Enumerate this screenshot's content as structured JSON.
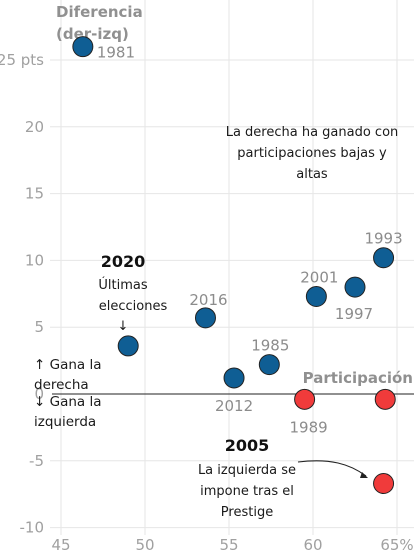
{
  "chart_data": {
    "type": "scatter",
    "xlabel": "Participación",
    "ylabel": "Diferencia (der-izq)",
    "ylabel_lines": [
      "Diferencia",
      "(der-izq)"
    ],
    "xlim": [
      44.5,
      66
    ],
    "ylim": [
      -10.3,
      28
    ],
    "x_ticks": [
      45,
      50,
      55,
      60,
      65
    ],
    "x_tick_labels": [
      "45",
      "50",
      "55",
      "60",
      "65%"
    ],
    "y_ticks": [
      25,
      20,
      15,
      10,
      5,
      0,
      -5,
      -10
    ],
    "y_tick_labels": [
      "25 pts",
      "20",
      "15",
      "10",
      "5",
      "0",
      "-5",
      "-10"
    ],
    "grid": true,
    "colors": {
      "derecha": "#0f5e94",
      "izquierda": "#f03b3b"
    },
    "points": [
      {
        "year": "1981",
        "x": 46.3,
        "y": 26.0,
        "winner": "derecha"
      },
      {
        "year": "2020",
        "x": 49.0,
        "y": 3.6,
        "winner": "derecha"
      },
      {
        "year": "2016",
        "x": 53.6,
        "y": 5.7,
        "winner": "derecha"
      },
      {
        "year": "2012",
        "x": 55.3,
        "y": 1.2,
        "winner": "derecha"
      },
      {
        "year": "1985",
        "x": 57.4,
        "y": 2.2,
        "winner": "derecha"
      },
      {
        "year": "1989",
        "x": 59.5,
        "y": -0.4,
        "winner": "izquierda"
      },
      {
        "year": "2001",
        "x": 60.2,
        "y": 7.3,
        "winner": "derecha"
      },
      {
        "year": "1997",
        "x": 62.5,
        "y": 8.0,
        "winner": "derecha"
      },
      {
        "year": "1993",
        "x": 64.2,
        "y": 10.2,
        "winner": "derecha"
      },
      {
        "year": "",
        "x": 64.3,
        "y": -0.4,
        "winner": "izquierda"
      },
      {
        "year": "",
        "x": 64.2,
        "y": -6.7,
        "winner": "izquierda"
      }
    ],
    "annotations": {
      "derecha_gana": [
        "La derecha ha ganado con",
        "participaciones bajas y",
        "altas"
      ],
      "y2020_title": "2020",
      "y2020_lines": [
        "Últimas",
        "elecciones"
      ],
      "gana_derecha": [
        "↑ Gana la",
        "derecha"
      ],
      "gana_izquierda": [
        "↓ Gana la",
        "izquierda"
      ],
      "y2005_title": "2005",
      "y2005_lines": [
        "La izquierda se",
        "impone tras el",
        "Prestige"
      ],
      "down_arrow": "↓"
    }
  }
}
